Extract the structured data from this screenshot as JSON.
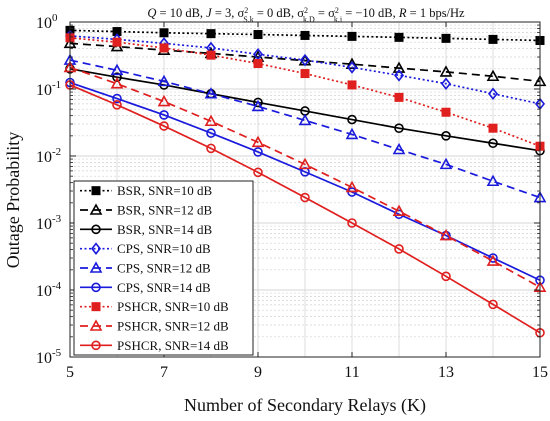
{
  "chart_data": {
    "type": "line",
    "title": "Q = 10 dB, J = 3, σ²S,k = 0 dB, σ²k,D = σ²k,j = −10 dB, R = 1 bps/Hz",
    "title_parts": {
      "a": "Q",
      "b": " = 10 dB, ",
      "c": "J",
      "d": " = 3, σ",
      "e": "2",
      "f": "S,k",
      "g": " = 0 dB, σ",
      "h": "2",
      "i": "k,D",
      "j": " = σ",
      "k": "2",
      "l": "k,j",
      "m": " = −10 dB, ",
      "n": "R",
      "o": " = 1 bps/Hz"
    },
    "xlabel": "Number of Secondary Relays (K)",
    "ylabel": "Outage Probability",
    "xlim": [
      5,
      15
    ],
    "ylim": [
      1e-05,
      1
    ],
    "yscale": "log",
    "grid": true,
    "legend_position": "bottom-left",
    "x_ticks": [
      "5",
      "7",
      "9",
      "11",
      "13",
      "15"
    ],
    "y_ticks": [
      {
        "mantissa": "10",
        "exp": "0"
      },
      {
        "mantissa": "10",
        "exp": "-1"
      },
      {
        "mantissa": "10",
        "exp": "-2"
      },
      {
        "mantissa": "10",
        "exp": "-3"
      },
      {
        "mantissa": "10",
        "exp": "-4"
      },
      {
        "mantissa": "10",
        "exp": "-5"
      }
    ],
    "x": [
      5,
      6,
      7,
      8,
      9,
      10,
      11,
      12,
      13,
      14,
      15
    ],
    "series": [
      {
        "name": "BSR, SNR=10 dB",
        "color": "#000000",
        "dash": "dotted",
        "marker": "square",
        "values": [
          0.75,
          0.72,
          0.69,
          0.67,
          0.65,
          0.63,
          0.61,
          0.59,
          0.57,
          0.55,
          0.53
        ]
      },
      {
        "name": "BSR, SNR=12 dB",
        "color": "#000000",
        "dash": "dashed",
        "marker": "triangle",
        "values": [
          0.48,
          0.43,
          0.38,
          0.34,
          0.3,
          0.265,
          0.235,
          0.205,
          0.18,
          0.155,
          0.13
        ]
      },
      {
        "name": "BSR, SNR=14 dB",
        "color": "#000000",
        "dash": "solid",
        "marker": "circle",
        "values": [
          0.2,
          0.15,
          0.115,
          0.085,
          0.063,
          0.047,
          0.035,
          0.026,
          0.02,
          0.0155,
          0.012
        ]
      },
      {
        "name": "CPS, SNR=10 dB",
        "color": "#1a1adc",
        "dash": "dotted",
        "marker": "diamond",
        "values": [
          0.62,
          0.55,
          0.48,
          0.41,
          0.33,
          0.27,
          0.21,
          0.16,
          0.12,
          0.085,
          0.06
        ]
      },
      {
        "name": "CPS, SNR=12 dB",
        "color": "#1a1adc",
        "dash": "dashed",
        "marker": "triangle",
        "values": [
          0.27,
          0.19,
          0.13,
          0.085,
          0.055,
          0.034,
          0.021,
          0.0125,
          0.0075,
          0.0042,
          0.0024
        ]
      },
      {
        "name": "CPS, SNR=14 dB",
        "color": "#1a1adc",
        "dash": "solid",
        "marker": "circle",
        "values": [
          0.125,
          0.072,
          0.041,
          0.022,
          0.0115,
          0.0058,
          0.0029,
          0.00135,
          0.00065,
          0.0003,
          0.00014
        ]
      },
      {
        "name": "PSHCR, SNR=10 dB",
        "color": "#e01f1f",
        "dash": "dotted",
        "marker": "square",
        "values": [
          0.58,
          0.5,
          0.41,
          0.32,
          0.24,
          0.17,
          0.115,
          0.075,
          0.045,
          0.026,
          0.014
        ]
      },
      {
        "name": "PSHCR, SNR=12 dB",
        "color": "#e01f1f",
        "dash": "dashed",
        "marker": "triangle",
        "values": [
          0.21,
          0.12,
          0.065,
          0.033,
          0.016,
          0.0075,
          0.0034,
          0.0015,
          0.00065,
          0.00027,
          0.00011
        ]
      },
      {
        "name": "PSHCR, SNR=14 dB",
        "color": "#e01f1f",
        "dash": "solid",
        "marker": "circle",
        "values": [
          0.115,
          0.058,
          0.028,
          0.013,
          0.0057,
          0.0024,
          0.001,
          0.00041,
          0.00016,
          6.1e-05,
          2.3e-05
        ]
      }
    ]
  }
}
